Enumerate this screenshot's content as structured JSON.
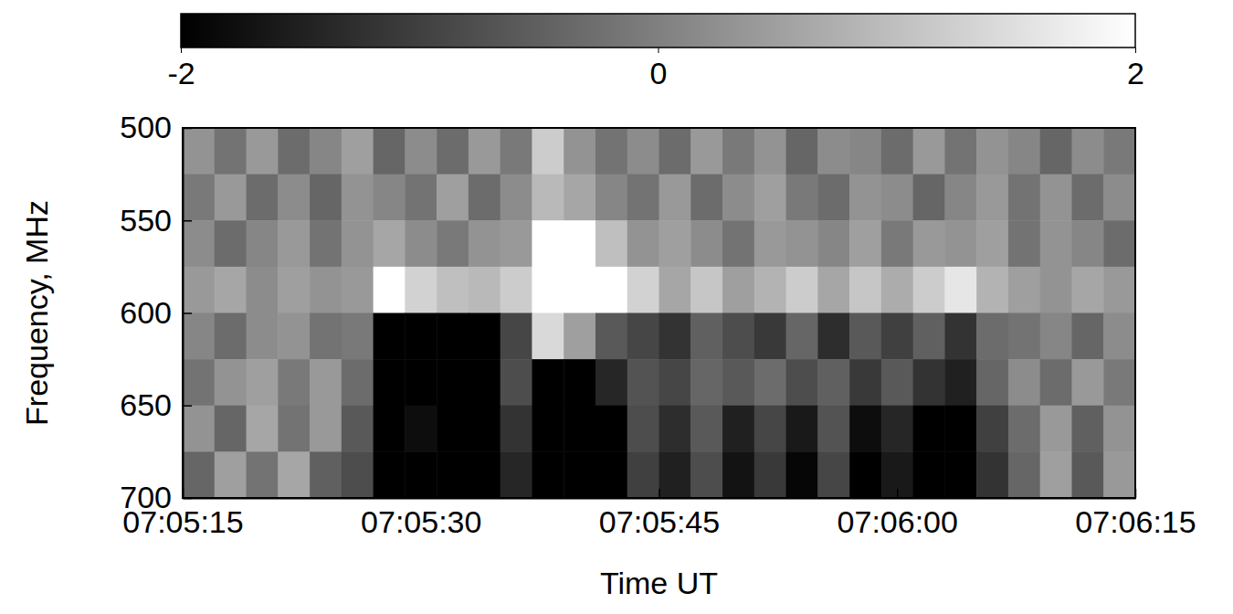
{
  "chart_data": {
    "type": "heatmap",
    "xlabel": "Time UT",
    "ylabel": "Frequency, MHz",
    "xlim": [
      25515,
      25575
    ],
    "xticks": [
      {
        "value": 25515,
        "label": "07:05:15"
      },
      {
        "value": 25530,
        "label": "07:05:30"
      },
      {
        "value": 25545,
        "label": "07:05:45"
      },
      {
        "value": 25560,
        "label": "07:06:00"
      },
      {
        "value": 25575,
        "label": "07:06:15"
      }
    ],
    "ylim": [
      500,
      700
    ],
    "yticks": [
      500,
      550,
      600,
      650,
      700
    ],
    "x": [
      25516,
      25518,
      25520,
      25522,
      25524,
      25526,
      25528,
      25530,
      25532,
      25534,
      25536,
      25538,
      25540,
      25542,
      25544,
      25546,
      25548,
      25550,
      25552,
      25554,
      25556,
      25558,
      25560,
      25562,
      25564,
      25566,
      25568,
      25570,
      25572,
      25574
    ],
    "y": [
      512.5,
      537.5,
      562.5,
      587.5,
      612.5,
      637.5,
      662.5,
      687.5
    ],
    "z": [
      [
        0.3,
        -0.2,
        0.4,
        -0.3,
        0.1,
        0.5,
        -0.4,
        0.2,
        -0.3,
        0.4,
        -0.1,
        1.2,
        0.3,
        -0.2,
        0.2,
        -0.3,
        0.4,
        -0.1,
        0.3,
        -0.4,
        0.2,
        0.1,
        -0.3,
        0.4,
        -0.2,
        0.3,
        0.1,
        -0.4,
        0.2,
        -0.1
      ],
      [
        -0.1,
        0.4,
        -0.3,
        0.2,
        -0.4,
        0.3,
        0.1,
        -0.2,
        0.5,
        -0.3,
        0.2,
        0.9,
        0.6,
        0.1,
        -0.2,
        0.4,
        -0.3,
        0.2,
        0.5,
        -0.1,
        -0.3,
        0.3,
        0.2,
        -0.4,
        0.1,
        0.4,
        -0.2,
        0.3,
        -0.3,
        0.2
      ],
      [
        0.2,
        -0.3,
        0.1,
        0.4,
        -0.2,
        0.3,
        0.6,
        0.2,
        -0.1,
        0.3,
        0.4,
        2.5,
        2.3,
        1.0,
        0.3,
        0.5,
        0.2,
        -0.2,
        0.4,
        0.3,
        0.1,
        0.5,
        -0.1,
        0.4,
        0.3,
        0.5,
        -0.2,
        0.3,
        0.1,
        -0.3
      ],
      [
        0.4,
        0.6,
        0.2,
        0.5,
        0.3,
        0.4,
        2.2,
        1.3,
        1.0,
        0.9,
        1.2,
        3.0,
        3.0,
        2.4,
        1.3,
        0.6,
        1.1,
        0.5,
        0.8,
        1.2,
        0.6,
        1.1,
        0.7,
        1.2,
        1.6,
        0.8,
        0.5,
        0.3,
        0.6,
        0.4
      ],
      [
        0.1,
        -0.3,
        0.2,
        0.3,
        -0.2,
        -0.1,
        -2.8,
        -2.6,
        -2.5,
        -2.7,
        -0.9,
        1.4,
        0.5,
        -0.6,
        -0.9,
        -1.2,
        -0.5,
        -0.8,
        -1.1,
        -0.4,
        -1.3,
        -0.6,
        -1.0,
        -0.5,
        -1.2,
        -0.3,
        -0.2,
        0.1,
        -0.4,
        0.2
      ],
      [
        -0.2,
        0.3,
        0.5,
        -0.1,
        0.4,
        -0.3,
        -2.6,
        -2.3,
        -2.6,
        -2.4,
        -0.8,
        -2.2,
        -2.5,
        -1.4,
        -0.7,
        -0.9,
        -0.4,
        -0.6,
        -0.3,
        -0.8,
        -0.5,
        -1.1,
        -0.6,
        -1.2,
        -1.5,
        -0.4,
        0.2,
        -0.3,
        0.4,
        -0.1
      ],
      [
        0.3,
        -0.4,
        0.6,
        -0.2,
        0.4,
        -0.6,
        -3.0,
        -1.8,
        -2.8,
        -2.6,
        -1.2,
        -3.0,
        -3.0,
        -2.2,
        -0.8,
        -1.3,
        -0.6,
        -1.5,
        -0.9,
        -1.6,
        -0.7,
        -1.8,
        -1.4,
        -2.4,
        -2.6,
        -1.0,
        -0.3,
        0.4,
        -0.5,
        0.3
      ],
      [
        -0.4,
        0.5,
        -0.2,
        0.6,
        -0.5,
        -0.8,
        -3.0,
        -2.0,
        -2.9,
        -2.7,
        -1.4,
        -3.0,
        -3.0,
        -2.3,
        -1.0,
        -1.5,
        -0.8,
        -1.7,
        -1.1,
        -1.9,
        -0.9,
        -2.0,
        -1.6,
        -2.6,
        -2.8,
        -1.2,
        -0.4,
        0.5,
        -0.6,
        0.4
      ]
    ],
    "colorbar": {
      "range": [
        -2,
        2
      ],
      "ticks": [
        -2,
        0,
        2
      ]
    }
  }
}
